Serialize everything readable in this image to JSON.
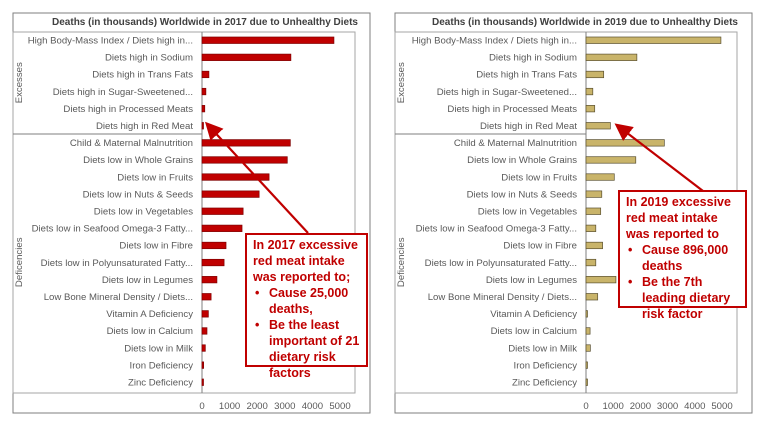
{
  "chart_data": [
    {
      "type": "bar",
      "orientation": "horizontal",
      "title": "Deaths (in thousands) Worldwide in 2017 due to Unhealthy Diets",
      "groups": [
        {
          "name": "Excesses",
          "count": 6
        },
        {
          "name": "Deficiencies",
          "label": "Deficencies",
          "count": 15
        }
      ],
      "categories": [
        "High Body-Mass Index / Diets high in...",
        "Diets high in Sodium",
        "Diets high in Trans Fats",
        "Diets high in Sugar-Sweetened...",
        "Diets high in Processed Meats",
        "Diets high in Red Meat",
        "Child & Maternal Malnutrition",
        "Diets low in Whole Grains",
        "Diets low in Fruits",
        "Diets low in Nuts & Seeds",
        "Diets low in Vegetables",
        "Diets low in Seafood Omega-3 Fatty...",
        "Diets low in Fibre",
        "Diets low in Polyunsaturated Fatty...",
        "Diets low in Legumes",
        "Low Bone Mineral Density / Diets...",
        "Vitamin A Deficiency",
        "Diets low in Calcium",
        "Diets low in Milk",
        "Iron Deficiency",
        "Zinc Deficiency"
      ],
      "values": [
        4780,
        3220,
        250,
        140,
        100,
        25,
        3200,
        3090,
        2430,
        2070,
        1490,
        1450,
        870,
        800,
        540,
        330,
        230,
        180,
        120,
        60,
        30
      ],
      "xlim": [
        0,
        5000
      ],
      "xticks": [
        "0",
        "1000",
        "2000",
        "3000",
        "4000",
        "5000"
      ],
      "bar_color": "#c00000",
      "grid": false,
      "annotation": {
        "lines": [
          "In 2017 excessive red meat intake was reported to;"
        ],
        "bullets": [
          "Cause 25,000 deaths,",
          "Be the least important of 21 dietary risk factors"
        ],
        "color": "#c00000"
      }
    },
    {
      "type": "bar",
      "orientation": "horizontal",
      "title": "Deaths (in thousands) Worldwide in 2019 due to Unhealthy Diets",
      "groups": [
        {
          "name": "Excesses",
          "count": 6
        },
        {
          "name": "Deficiencies",
          "label": "Deficencies",
          "count": 15
        }
      ],
      "categories": [
        "High Body-Mass Index / Diets high in...",
        "Diets high in Sodium",
        "Diets high in Trans Fats",
        "Diets high in Sugar-Sweetened...",
        "Diets high in Processed Meats",
        "Diets high in Red Meat",
        "Child & Maternal Malnutrition",
        "Diets low in Whole Grains",
        "Diets low in Fruits",
        "Diets low in Nuts & Seeds",
        "Diets low in Vegetables",
        "Diets low in Seafood Omega-3 Fatty...",
        "Diets low in Fibre",
        "Diets low in Polyunsaturated Fatty...",
        "Diets low in Legumes",
        "Low Bone Mineral Density / Diets...",
        "Vitamin A Deficiency",
        "Diets low in Calcium",
        "Diets low in Milk",
        "Iron Deficiency",
        "Zinc Deficiency"
      ],
      "values": [
        4960,
        1870,
        650,
        250,
        320,
        896,
        2880,
        1830,
        1040,
        580,
        540,
        360,
        610,
        360,
        1100,
        430,
        20,
        150,
        160,
        40,
        20
      ],
      "xlim": [
        0,
        5000
      ],
      "xticks": [
        "0",
        "1000",
        "2000",
        "3000",
        "4000",
        "5000"
      ],
      "bar_color": "#c9b46a",
      "grid": false,
      "annotation": {
        "lines": [
          "In 2019 excessive red meat intake was reported to"
        ],
        "bullets": [
          "Cause 896,000 deaths",
          "Be the 7th leading dietary risk factor"
        ],
        "color": "#c00000"
      }
    }
  ]
}
